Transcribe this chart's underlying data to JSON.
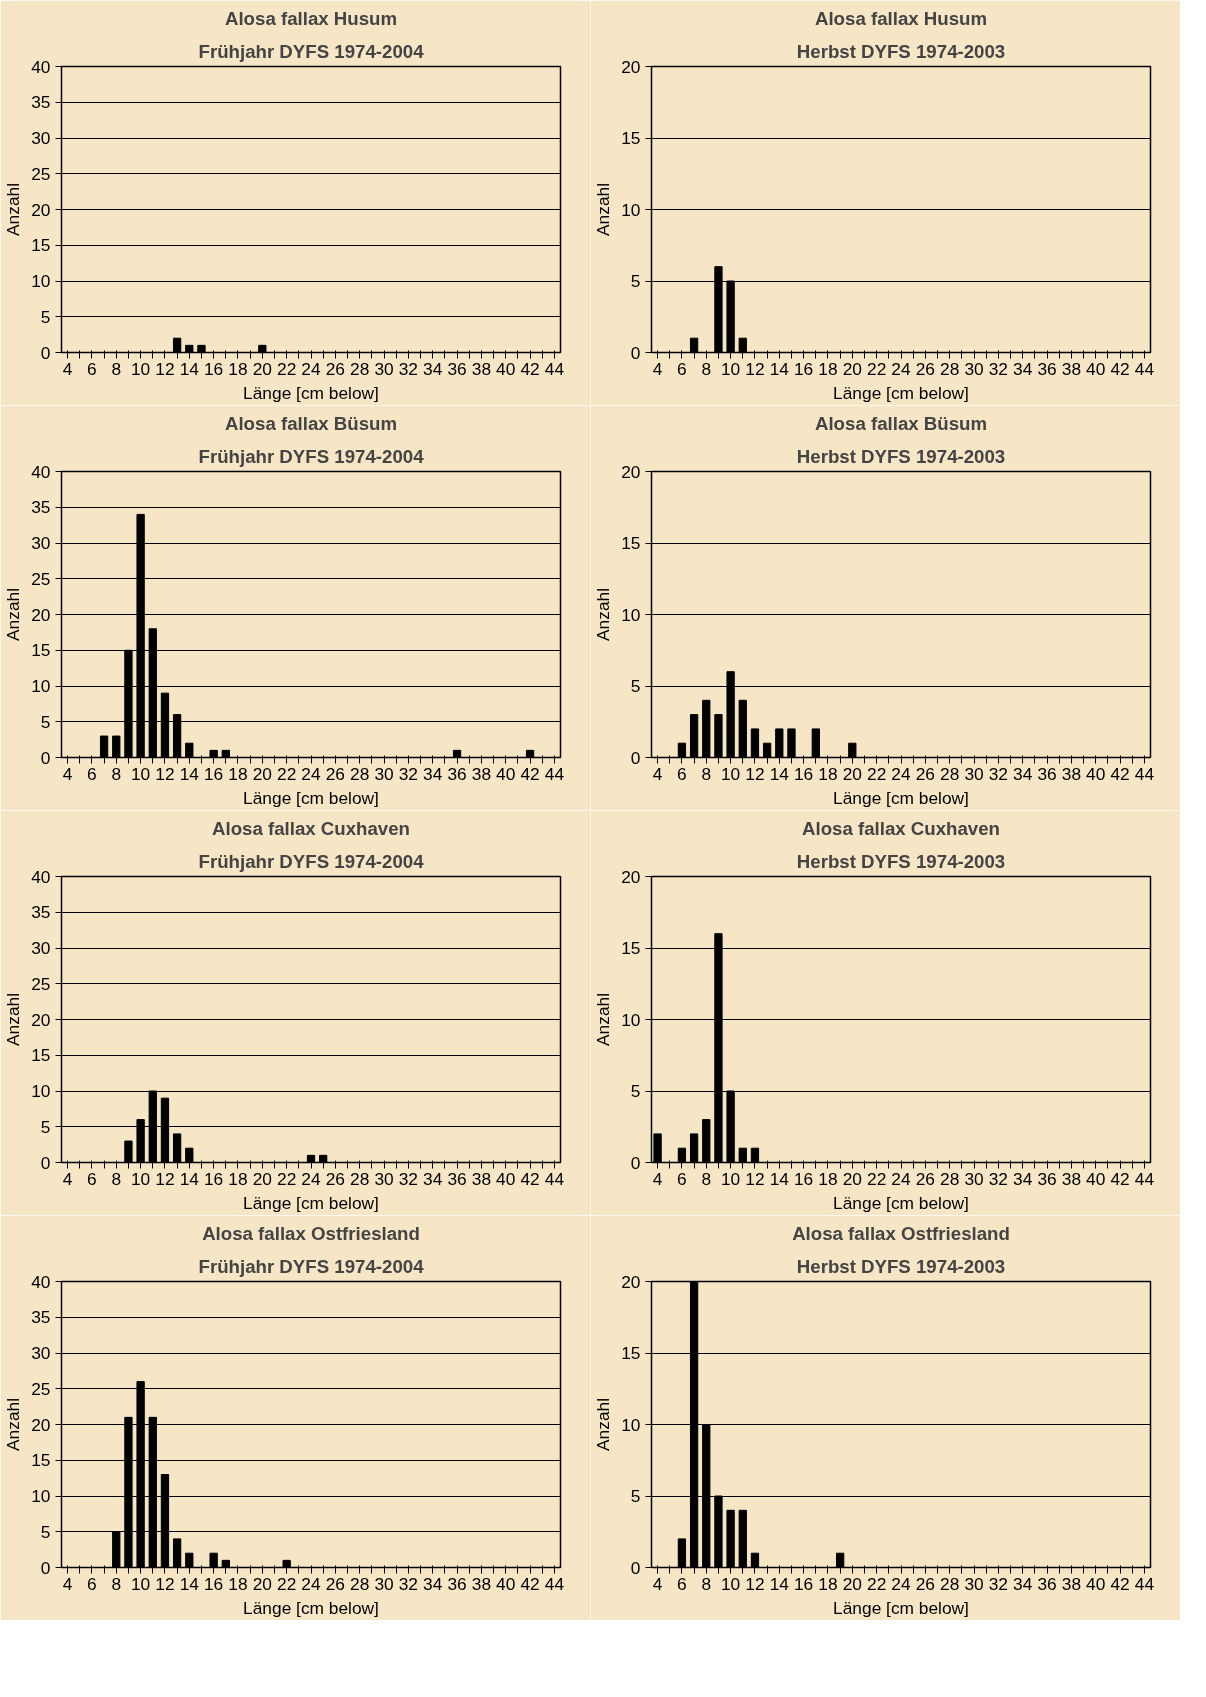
{
  "chart_data": [
    {
      "type": "bar",
      "title": "Alosa fallax Husum",
      "subtitle": "Frühjahr DYFS 1974-2004",
      "xlabel": "Länge [cm below]",
      "ylabel": "Anzahl",
      "color": "#000000",
      "grid": "y",
      "ylim": [
        0,
        40
      ],
      "yticks": [
        0,
        5,
        10,
        15,
        20,
        25,
        30,
        35,
        40
      ],
      "categories": [
        "4",
        null,
        "6",
        null,
        "8",
        null,
        "10",
        null,
        "12",
        null,
        "14",
        null,
        "16",
        null,
        "18",
        null,
        "20",
        null,
        "22",
        null,
        "24",
        null,
        "26",
        null,
        "28",
        null,
        "30",
        null,
        "32",
        null,
        "34",
        null,
        "36",
        null,
        "38",
        null,
        "40",
        null,
        "42",
        null,
        "44"
      ],
      "values": [
        0,
        0,
        0,
        0,
        0,
        0,
        0,
        0,
        0,
        2,
        1,
        1,
        0,
        0,
        0,
        0,
        1,
        0,
        0,
        0,
        0,
        0,
        0,
        0,
        0,
        0,
        0,
        0,
        0,
        0,
        0,
        0,
        0,
        0,
        0,
        0,
        0,
        0,
        0,
        0,
        0
      ]
    },
    {
      "type": "bar",
      "title": "Alosa fallax Husum",
      "subtitle": "Herbst DYFS 1974-2003",
      "xlabel": "Länge [cm below]",
      "ylabel": "Anzahl",
      "color": "#000000",
      "grid": "y",
      "ylim": [
        0,
        20
      ],
      "yticks": [
        0,
        5,
        10,
        15,
        20
      ],
      "categories": [
        "4",
        null,
        "6",
        null,
        "8",
        null,
        "10",
        null,
        "12",
        null,
        "14",
        null,
        "16",
        null,
        "18",
        null,
        "20",
        null,
        "22",
        null,
        "24",
        null,
        "26",
        null,
        "28",
        null,
        "30",
        null,
        "32",
        null,
        "34",
        null,
        "36",
        null,
        "38",
        null,
        "40",
        null,
        "42",
        null,
        "44"
      ],
      "values": [
        0,
        0,
        0,
        1,
        0,
        6,
        5,
        1,
        0,
        0,
        0,
        0,
        0,
        0,
        0,
        0,
        0,
        0,
        0,
        0,
        0,
        0,
        0,
        0,
        0,
        0,
        0,
        0,
        0,
        0,
        0,
        0,
        0,
        0,
        0,
        0,
        0,
        0,
        0,
        0,
        0
      ]
    },
    {
      "type": "bar",
      "title": "Alosa fallax Büsum",
      "subtitle": "Frühjahr DYFS 1974-2004",
      "xlabel": "Länge [cm below]",
      "ylabel": "Anzahl",
      "color": "#000000",
      "grid": "y",
      "ylim": [
        0,
        40
      ],
      "yticks": [
        0,
        5,
        10,
        15,
        20,
        25,
        30,
        35,
        40
      ],
      "categories": [
        "4",
        null,
        "6",
        null,
        "8",
        null,
        "10",
        null,
        "12",
        null,
        "14",
        null,
        "16",
        null,
        "18",
        null,
        "20",
        null,
        "22",
        null,
        "24",
        null,
        "26",
        null,
        "28",
        null,
        "30",
        null,
        "32",
        null,
        "34",
        null,
        "36",
        null,
        "38",
        null,
        "40",
        null,
        "42",
        null,
        "44"
      ],
      "values": [
        0,
        0,
        0,
        3,
        3,
        15,
        34,
        18,
        9,
        6,
        2,
        0,
        1,
        1,
        0,
        0,
        0,
        0,
        0,
        0,
        0,
        0,
        0,
        0,
        0,
        0,
        0,
        0,
        0,
        0,
        0,
        0,
        1,
        0,
        0,
        0,
        0,
        0,
        1,
        0,
        0
      ]
    },
    {
      "type": "bar",
      "title": "Alosa fallax Büsum",
      "subtitle": "Herbst DYFS 1974-2003",
      "xlabel": "Länge [cm below]",
      "ylabel": "Anzahl",
      "color": "#000000",
      "grid": "y",
      "ylim": [
        0,
        20
      ],
      "yticks": [
        0,
        5,
        10,
        15,
        20
      ],
      "categories": [
        "4",
        null,
        "6",
        null,
        "8",
        null,
        "10",
        null,
        "12",
        null,
        "14",
        null,
        "16",
        null,
        "18",
        null,
        "20",
        null,
        "22",
        null,
        "24",
        null,
        "26",
        null,
        "28",
        null,
        "30",
        null,
        "32",
        null,
        "34",
        null,
        "36",
        null,
        "38",
        null,
        "40",
        null,
        "42",
        null,
        "44"
      ],
      "values": [
        0,
        0,
        1,
        3,
        4,
        3,
        6,
        4,
        2,
        1,
        2,
        2,
        0,
        2,
        0,
        0,
        1,
        0,
        0,
        0,
        0,
        0,
        0,
        0,
        0,
        0,
        0,
        0,
        0,
        0,
        0,
        0,
        0,
        0,
        0,
        0,
        0,
        0,
        0,
        0,
        0
      ]
    },
    {
      "type": "bar",
      "title": "Alosa fallax Cuxhaven",
      "subtitle": "Frühjahr DYFS 1974-2004",
      "xlabel": "Länge [cm below]",
      "ylabel": "Anzahl",
      "color": "#000000",
      "grid": "y",
      "ylim": [
        0,
        40
      ],
      "yticks": [
        0,
        5,
        10,
        15,
        20,
        25,
        30,
        35,
        40
      ],
      "categories": [
        "4",
        null,
        "6",
        null,
        "8",
        null,
        "10",
        null,
        "12",
        null,
        "14",
        null,
        "16",
        null,
        "18",
        null,
        "20",
        null,
        "22",
        null,
        "24",
        null,
        "26",
        null,
        "28",
        null,
        "30",
        null,
        "32",
        null,
        "34",
        null,
        "36",
        null,
        "38",
        null,
        "40",
        null,
        "42",
        null,
        "44"
      ],
      "values": [
        0,
        0,
        0,
        0,
        0,
        3,
        6,
        10,
        9,
        4,
        2,
        0,
        0,
        0,
        0,
        0,
        0,
        0,
        0,
        0,
        1,
        1,
        0,
        0,
        0,
        0,
        0,
        0,
        0,
        0,
        0,
        0,
        0,
        0,
        0,
        0,
        0,
        0,
        0,
        0,
        0
      ]
    },
    {
      "type": "bar",
      "title": "Alosa fallax Cuxhaven",
      "subtitle": "Herbst DYFS 1974-2003",
      "xlabel": "Länge [cm below]",
      "ylabel": "Anzahl",
      "color": "#000000",
      "grid": "y",
      "ylim": [
        0,
        20
      ],
      "yticks": [
        0,
        5,
        10,
        15,
        20
      ],
      "categories": [
        "4",
        null,
        "6",
        null,
        "8",
        null,
        "10",
        null,
        "12",
        null,
        "14",
        null,
        "16",
        null,
        "18",
        null,
        "20",
        null,
        "22",
        null,
        "24",
        null,
        "26",
        null,
        "28",
        null,
        "30",
        null,
        "32",
        null,
        "34",
        null,
        "36",
        null,
        "38",
        null,
        "40",
        null,
        "42",
        null,
        "44"
      ],
      "values": [
        2,
        0,
        1,
        2,
        3,
        16,
        5,
        1,
        1,
        0,
        0,
        0,
        0,
        0,
        0,
        0,
        0,
        0,
        0,
        0,
        0,
        0,
        0,
        0,
        0,
        0,
        0,
        0,
        0,
        0,
        0,
        0,
        0,
        0,
        0,
        0,
        0,
        0,
        0,
        0,
        0
      ]
    },
    {
      "type": "bar",
      "title": "Alosa fallax Ostfriesland",
      "subtitle": "Frühjahr DYFS 1974-2004",
      "xlabel": "Länge [cm below]",
      "ylabel": "Anzahl",
      "color": "#000000",
      "grid": "y",
      "ylim": [
        0,
        40
      ],
      "yticks": [
        0,
        5,
        10,
        15,
        20,
        25,
        30,
        35,
        40
      ],
      "categories": [
        "4",
        null,
        "6",
        null,
        "8",
        null,
        "10",
        null,
        "12",
        null,
        "14",
        null,
        "16",
        null,
        "18",
        null,
        "20",
        null,
        "22",
        null,
        "24",
        null,
        "26",
        null,
        "28",
        null,
        "30",
        null,
        "32",
        null,
        "34",
        null,
        "36",
        null,
        "38",
        null,
        "40",
        null,
        "42",
        null,
        "44"
      ],
      "values": [
        0,
        0,
        0,
        0,
        5,
        21,
        26,
        21,
        13,
        4,
        2,
        0,
        2,
        1,
        0,
        0,
        0,
        0,
        1,
        0,
        0,
        0,
        0,
        0,
        0,
        0,
        0,
        0,
        0,
        0,
        0,
        0,
        0,
        0,
        0,
        0,
        0,
        0,
        0,
        0,
        0
      ]
    },
    {
      "type": "bar",
      "title": "Alosa fallax Ostfriesland",
      "subtitle": "Herbst DYFS 1974-2003",
      "xlabel": "Länge [cm below]",
      "ylabel": "Anzahl",
      "color": "#000000",
      "grid": "y",
      "ylim": [
        0,
        20
      ],
      "yticks": [
        0,
        5,
        10,
        15,
        20
      ],
      "categories": [
        "4",
        null,
        "6",
        null,
        "8",
        null,
        "10",
        null,
        "12",
        null,
        "14",
        null,
        "16",
        null,
        "18",
        null,
        "20",
        null,
        "22",
        null,
        "24",
        null,
        "26",
        null,
        "28",
        null,
        "30",
        null,
        "32",
        null,
        "34",
        null,
        "36",
        null,
        "38",
        null,
        "40",
        null,
        "42",
        null,
        "44"
      ],
      "values": [
        0,
        0,
        2,
        20,
        10,
        5,
        4,
        4,
        1,
        0,
        0,
        0,
        0,
        0,
        0,
        1,
        0,
        0,
        0,
        0,
        0,
        0,
        0,
        0,
        0,
        0,
        0,
        0,
        0,
        0,
        0,
        0,
        0,
        0,
        0,
        0,
        0,
        0,
        0,
        0,
        0
      ]
    }
  ]
}
